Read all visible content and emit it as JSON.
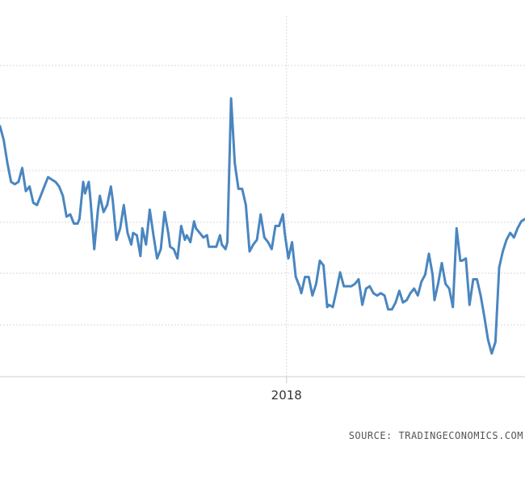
{
  "source": "SOURCE: TRADINGECONOMICS.COM",
  "colors": {
    "line": "#4a86c0",
    "grid": "#d9d9d9",
    "background": "#ffffff"
  },
  "chart_data": {
    "type": "line",
    "title": "",
    "xlabel": "",
    "ylabel": "",
    "grid": true,
    "x_tick_labels": [
      {
        "label": "2018",
        "x": 2018.0
      }
    ],
    "y_gridline_count": 7,
    "xlim": [
      2016.45,
      2019.29
    ],
    "ylim": [
      0,
      7.5
    ],
    "series": [
      {
        "values": [
          [
            2016.45,
            5.4
          ],
          [
            2016.47,
            5.1
          ],
          [
            2016.49,
            4.6
          ],
          [
            2016.51,
            4.2
          ],
          [
            2016.53,
            4.15
          ],
          [
            2016.55,
            4.2
          ],
          [
            2016.57,
            4.5
          ],
          [
            2016.59,
            4.0
          ],
          [
            2016.61,
            4.1
          ],
          [
            2016.63,
            3.75
          ],
          [
            2016.65,
            3.7
          ],
          [
            2016.67,
            3.9
          ],
          [
            2016.69,
            4.1
          ],
          [
            2016.71,
            4.3
          ],
          [
            2016.73,
            4.25
          ],
          [
            2016.75,
            4.2
          ],
          [
            2016.77,
            4.1
          ],
          [
            2016.79,
            3.9
          ],
          [
            2016.81,
            3.45
          ],
          [
            2016.83,
            3.5
          ],
          [
            2016.85,
            3.3
          ],
          [
            2016.87,
            3.3
          ],
          [
            2016.88,
            3.4
          ],
          [
            2016.9,
            4.2
          ],
          [
            2016.91,
            3.95
          ],
          [
            2016.93,
            4.2
          ],
          [
            2016.94,
            3.8
          ],
          [
            2016.96,
            2.75
          ],
          [
            2016.98,
            3.6
          ],
          [
            2016.99,
            3.9
          ],
          [
            2017.01,
            3.55
          ],
          [
            2017.03,
            3.7
          ],
          [
            2017.05,
            4.1
          ],
          [
            2017.06,
            3.8
          ],
          [
            2017.08,
            2.95
          ],
          [
            2017.1,
            3.2
          ],
          [
            2017.12,
            3.7
          ],
          [
            2017.14,
            3.1
          ],
          [
            2017.16,
            2.85
          ],
          [
            2017.17,
            3.1
          ],
          [
            2017.19,
            3.05
          ],
          [
            2017.21,
            2.6
          ],
          [
            2017.22,
            3.2
          ],
          [
            2017.24,
            2.85
          ],
          [
            2017.26,
            3.6
          ],
          [
            2017.28,
            3.05
          ],
          [
            2017.3,
            2.55
          ],
          [
            2017.32,
            2.75
          ],
          [
            2017.34,
            3.55
          ],
          [
            2017.36,
            3.1
          ],
          [
            2017.37,
            2.8
          ],
          [
            2017.39,
            2.75
          ],
          [
            2017.41,
            2.55
          ],
          [
            2017.43,
            3.25
          ],
          [
            2017.45,
            2.95
          ],
          [
            2017.46,
            3.05
          ],
          [
            2017.48,
            2.9
          ],
          [
            2017.5,
            3.35
          ],
          [
            2017.51,
            3.2
          ],
          [
            2017.53,
            3.1
          ],
          [
            2017.55,
            3.0
          ],
          [
            2017.57,
            3.05
          ],
          [
            2017.58,
            2.8
          ],
          [
            2017.6,
            2.8
          ],
          [
            2017.62,
            2.8
          ],
          [
            2017.64,
            3.05
          ],
          [
            2017.65,
            2.85
          ],
          [
            2017.67,
            2.75
          ],
          [
            2017.68,
            2.9
          ],
          [
            2017.7,
            6.0
          ],
          [
            2017.72,
            4.6
          ],
          [
            2017.74,
            4.05
          ],
          [
            2017.76,
            4.05
          ],
          [
            2017.78,
            3.7
          ],
          [
            2017.8,
            2.7
          ],
          [
            2017.82,
            2.85
          ],
          [
            2017.84,
            2.95
          ],
          [
            2017.86,
            3.5
          ],
          [
            2017.88,
            3.0
          ],
          [
            2017.9,
            2.9
          ],
          [
            2017.92,
            2.75
          ],
          [
            2017.94,
            3.25
          ],
          [
            2017.96,
            3.25
          ],
          [
            2017.98,
            3.5
          ],
          [
            2017.99,
            3.1
          ],
          [
            2018.01,
            2.55
          ],
          [
            2018.03,
            2.9
          ],
          [
            2018.05,
            2.15
          ],
          [
            2018.07,
            1.95
          ],
          [
            2018.08,
            1.8
          ],
          [
            2018.1,
            2.15
          ],
          [
            2018.12,
            2.15
          ],
          [
            2018.14,
            1.75
          ],
          [
            2018.16,
            2.0
          ],
          [
            2018.18,
            2.5
          ],
          [
            2018.2,
            2.4
          ],
          [
            2018.22,
            1.5
          ],
          [
            2018.23,
            1.55
          ],
          [
            2018.25,
            1.5
          ],
          [
            2018.27,
            1.85
          ],
          [
            2018.29,
            2.25
          ],
          [
            2018.31,
            1.95
          ],
          [
            2018.33,
            1.95
          ],
          [
            2018.35,
            1.95
          ],
          [
            2018.37,
            2.0
          ],
          [
            2018.39,
            2.1
          ],
          [
            2018.41,
            1.55
          ],
          [
            2018.43,
            1.9
          ],
          [
            2018.45,
            1.95
          ],
          [
            2018.47,
            1.8
          ],
          [
            2018.49,
            1.75
          ],
          [
            2018.51,
            1.8
          ],
          [
            2018.53,
            1.75
          ],
          [
            2018.55,
            1.45
          ],
          [
            2018.57,
            1.45
          ],
          [
            2018.59,
            1.6
          ],
          [
            2018.61,
            1.85
          ],
          [
            2018.63,
            1.6
          ],
          [
            2018.65,
            1.65
          ],
          [
            2018.67,
            1.8
          ],
          [
            2018.69,
            1.9
          ],
          [
            2018.71,
            1.75
          ],
          [
            2018.73,
            2.05
          ],
          [
            2018.75,
            2.2
          ],
          [
            2018.77,
            2.65
          ],
          [
            2018.79,
            2.2
          ],
          [
            2018.8,
            1.65
          ],
          [
            2018.82,
            2.0
          ],
          [
            2018.84,
            2.45
          ],
          [
            2018.86,
            2.0
          ],
          [
            2018.88,
            1.9
          ],
          [
            2018.9,
            1.5
          ],
          [
            2018.92,
            3.2
          ],
          [
            2018.94,
            2.5
          ],
          [
            2018.95,
            2.5
          ],
          [
            2018.97,
            2.55
          ],
          [
            2018.99,
            1.55
          ],
          [
            2019.01,
            2.1
          ],
          [
            2019.03,
            2.1
          ],
          [
            2019.05,
            1.75
          ],
          [
            2019.07,
            1.3
          ],
          [
            2019.09,
            0.8
          ],
          [
            2019.11,
            0.5
          ],
          [
            2019.13,
            0.75
          ],
          [
            2019.15,
            2.35
          ],
          [
            2019.17,
            2.7
          ],
          [
            2019.19,
            2.95
          ],
          [
            2019.21,
            3.1
          ],
          [
            2019.23,
            3.0
          ],
          [
            2019.25,
            3.2
          ],
          [
            2019.27,
            3.35
          ],
          [
            2019.29,
            3.4
          ]
        ]
      }
    ]
  }
}
